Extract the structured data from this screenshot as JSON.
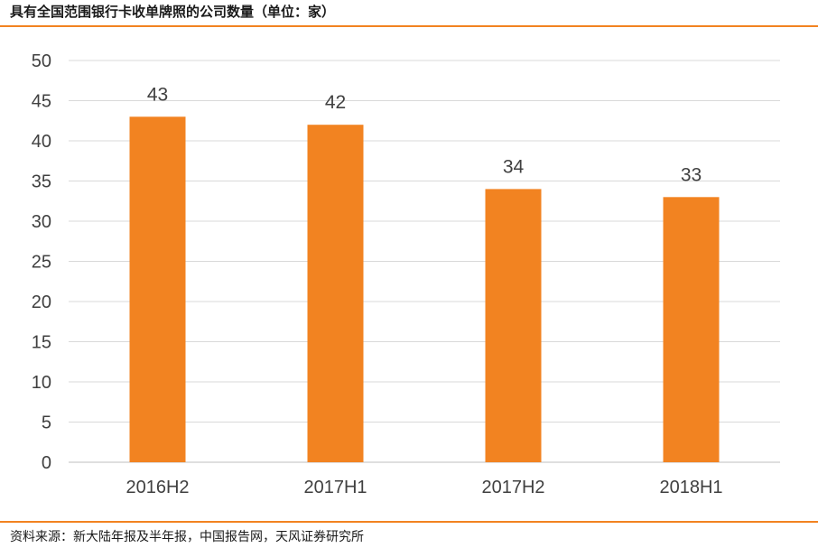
{
  "header": {
    "title": "具有全国范围银行卡收单牌照的公司数量（单位：家）"
  },
  "footer": {
    "source": "资料来源：新大陆年报及半年报，中国报告网，天风证券研究所"
  },
  "colors": {
    "accent": "#f28321",
    "bar": "#f28321",
    "grid": "#d9d9d9",
    "text": "#404040"
  },
  "chart_data": {
    "type": "bar",
    "title": "具有全国范围银行卡收单牌照的公司数量（单位：家）",
    "categories": [
      "2016H2",
      "2017H1",
      "2017H2",
      "2018H1"
    ],
    "values": [
      43,
      42,
      34,
      33
    ],
    "ylim": [
      0,
      50
    ],
    "yticks": [
      0,
      5,
      10,
      15,
      20,
      25,
      30,
      35,
      40,
      45,
      50
    ],
    "grid": true,
    "data_labels": true
  }
}
